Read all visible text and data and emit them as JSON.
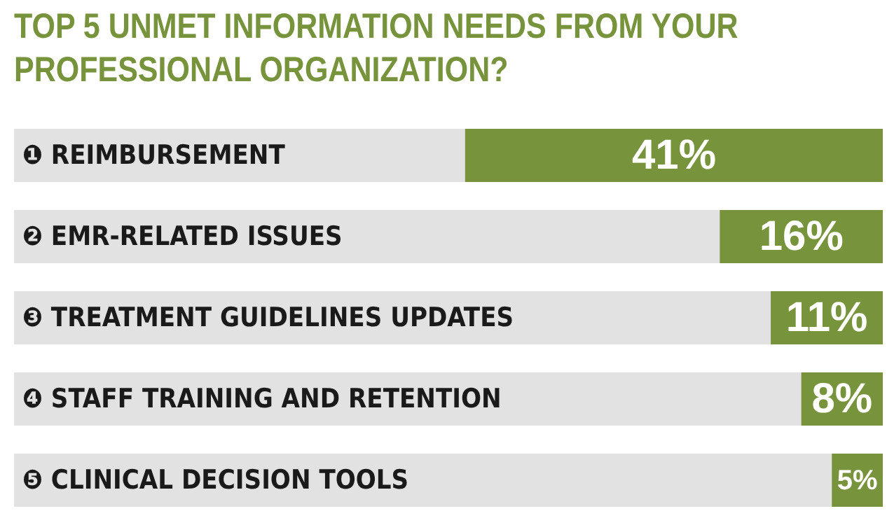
{
  "chart_data": {
    "type": "bar",
    "orientation": "horizontal",
    "title": "TOP 5 UNMET INFORMATION NEEDS FROM YOUR PROFESSIONAL ORGANIZATION?",
    "categories": [
      "❶ REIMBURSEMENT",
      "❷ EMR-RELATED ISSUES",
      "❸ TREATMENT GUIDELINES UPDATES",
      "❹ STAFF TRAINING AND RETENTION",
      "❺ CLINICAL DECISION TOOLS"
    ],
    "values": [
      41,
      16,
      11,
      8,
      5
    ],
    "value_labels": [
      "41%",
      "16%",
      "11%",
      "8%",
      "5%"
    ],
    "color": "#77933c"
  }
}
